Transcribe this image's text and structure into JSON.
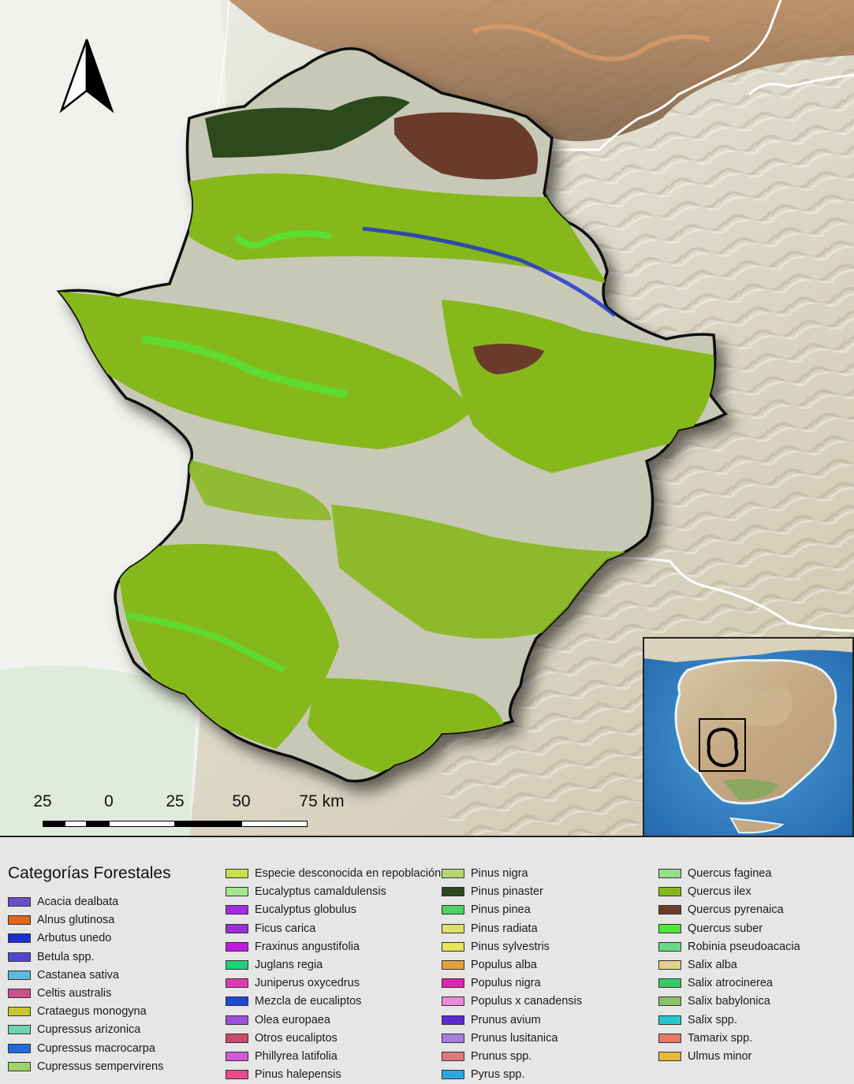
{
  "map": {
    "scale_bar": {
      "labels": [
        "25",
        "0",
        "25",
        "50",
        "75 km"
      ]
    },
    "north_arrow_icon": "north-arrow-icon",
    "inset": {
      "icon": "iberian-peninsula-locator-map"
    }
  },
  "legend": {
    "title": "Categorías Forestales",
    "columns": [
      [
        {
          "label": "Acacia dealbata",
          "color": "#6a4fc8"
        },
        {
          "label": "Alnus glutinosa",
          "color": "#e2661c"
        },
        {
          "label": "Arbutus unedo",
          "color": "#1b2fd1"
        },
        {
          "label": "Betula spp.",
          "color": "#4f49d0"
        },
        {
          "label": "Castanea sativa",
          "color": "#63b6de"
        },
        {
          "label": "Celtis australis",
          "color": "#d04e8e"
        },
        {
          "label": "Crataegus monogyna",
          "color": "#c6c72a"
        },
        {
          "label": "Cupressus arizonica",
          "color": "#6dd4b0"
        },
        {
          "label": "Cupressus macrocarpa",
          "color": "#1f6ae0"
        },
        {
          "label": "Cupressus sempervirens",
          "color": "#9ed46a"
        }
      ],
      [
        {
          "label": "Especie desconocida en repoblación",
          "color": "#c8e04a"
        },
        {
          "label": "Eucalyptus camaldulensis",
          "color": "#a4e88c"
        },
        {
          "label": "Eucalyptus globulus",
          "color": "#a42be0"
        },
        {
          "label": "Ficus carica",
          "color": "#9b2fd6"
        },
        {
          "label": "Fraxinus angustifolia",
          "color": "#c21ae0"
        },
        {
          "label": "Juglans regia",
          "color": "#1fcf7a"
        },
        {
          "label": "Juniperus oxycedrus",
          "color": "#e03aaf"
        },
        {
          "label": "Mezcla de eucaliptos",
          "color": "#2047d6"
        },
        {
          "label": "Olea europaea",
          "color": "#a050d8"
        },
        {
          "label": "Otros eucaliptos",
          "color": "#c84c6c"
        },
        {
          "label": "Phillyrea latifolia",
          "color": "#d05ad8"
        },
        {
          "label": "Pinus halepensis",
          "color": "#e84a8c"
        }
      ],
      [
        {
          "label": "Pinus nigra",
          "color": "#b4d870"
        },
        {
          "label": "Pinus pinaster",
          "color": "#2c4a1c"
        },
        {
          "label": "Pinus pinea",
          "color": "#4ed462"
        },
        {
          "label": "Pinus radiata",
          "color": "#dede6a"
        },
        {
          "label": "Pinus sylvestris",
          "color": "#e8e25c"
        },
        {
          "label": "Populus alba",
          "color": "#e2a23c"
        },
        {
          "label": "Populus nigra",
          "color": "#e024b0"
        },
        {
          "label": "Populus x canadensis",
          "color": "#e88ad8"
        },
        {
          "label": "Prunus avium",
          "color": "#5a2ad0"
        },
        {
          "label": "Prunus lusitanica",
          "color": "#a77ee0"
        },
        {
          "label": "Prunus spp.",
          "color": "#e07a7a"
        },
        {
          "label": "Pyrus spp.",
          "color": "#2aa6e0"
        }
      ],
      [
        {
          "label": "Quercus faginea",
          "color": "#94de8c"
        },
        {
          "label": "Quercus ilex",
          "color": "#86b81c"
        },
        {
          "label": "Quercus pyrenaica",
          "color": "#6a3a2c"
        },
        {
          "label": "Quercus suber",
          "color": "#4ee83a"
        },
        {
          "label": "Robinia pseudoacacia",
          "color": "#6ad884"
        },
        {
          "label": "Salix alba",
          "color": "#e2d08c"
        },
        {
          "label": "Salix atrocinerea",
          "color": "#3ac86a"
        },
        {
          "label": "Salix babylonica",
          "color": "#8cc264"
        },
        {
          "label": "Salix spp.",
          "color": "#26c8cc"
        },
        {
          "label": "Tamarix spp.",
          "color": "#e87a6a"
        },
        {
          "label": "Ulmus minor",
          "color": "#e8b83c"
        }
      ]
    ]
  }
}
